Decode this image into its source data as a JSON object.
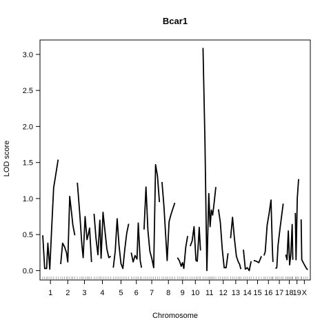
{
  "chart_data": {
    "type": "line",
    "title": "Bcar1",
    "xlabel": "Chromosome",
    "ylabel": "LOD score",
    "ylim": [
      -0.13,
      3.2
    ],
    "y_ticks": [
      "0.0",
      "0.5",
      "1.0",
      "1.5",
      "2.0",
      "2.5",
      "3.0"
    ],
    "grid": false,
    "line_color": "#000000",
    "chromosomes": [
      {
        "name": "1",
        "segments": [
          [
            [
              0.0,
              0.49
            ],
            [
              1.5,
              0.03
            ],
            [
              3.0,
              0.03
            ],
            [
              4.0,
              0.38
            ],
            [
              5.5,
              0.02
            ],
            [
              7.0,
              0.6
            ],
            [
              8.5,
              1.15
            ],
            [
              10.5,
              1.37
            ],
            [
              12.0,
              1.54
            ]
          ]
        ]
      },
      {
        "name": "2",
        "segments": [
          [
            [
              0.0,
              0.09
            ],
            [
              1.5,
              0.38
            ],
            [
              3.0,
              0.33
            ],
            [
              4.5,
              0.25
            ],
            [
              5.5,
              0.12
            ],
            [
              7.0,
              1.03
            ],
            [
              8.5,
              0.8
            ],
            [
              9.5,
              0.63
            ],
            [
              11.0,
              0.49
            ]
          ]
        ]
      },
      {
        "name": "3",
        "segments": [
          [
            [
              0.0,
              1.22
            ],
            [
              2.0,
              0.76
            ],
            [
              3.5,
              0.36
            ],
            [
              4.5,
              0.18
            ],
            [
              6.0,
              0.75
            ],
            [
              7.5,
              0.43
            ],
            [
              8.5,
              0.5
            ],
            [
              9.5,
              0.59
            ],
            [
              11.0,
              0.12
            ]
          ]
        ]
      },
      {
        "name": "4",
        "segments": [
          [
            [
              0.0,
              0.79
            ],
            [
              1.5,
              0.45
            ],
            [
              3.0,
              0.22
            ],
            [
              4.5,
              0.7
            ],
            [
              5.5,
              0.17
            ],
            [
              7.0,
              0.81
            ],
            [
              8.5,
              0.55
            ],
            [
              10.0,
              0.3
            ],
            [
              11.5,
              0.18
            ],
            [
              13.0,
              0.2
            ]
          ]
        ]
      },
      {
        "name": "5",
        "segments": [
          [
            [
              0.0,
              0.04
            ],
            [
              1.5,
              0.27
            ],
            [
              3.0,
              0.72
            ],
            [
              4.5,
              0.35
            ],
            [
              6.0,
              0.1
            ],
            [
              7.5,
              0.03
            ],
            [
              9.0,
              0.3
            ],
            [
              10.5,
              0.52
            ],
            [
              12.0,
              0.65
            ]
          ]
        ]
      },
      {
        "name": "6",
        "segments": [
          [
            [
              0.0,
              0.25
            ],
            [
              1.5,
              0.12
            ],
            [
              3.0,
              0.21
            ],
            [
              4.5,
              0.16
            ],
            [
              5.5,
              0.66
            ],
            [
              7.0,
              0.14
            ],
            [
              8.0,
              0.04
            ]
          ]
        ]
      },
      {
        "name": "7",
        "segments": [
          [
            [
              0.0,
              0.57
            ],
            [
              1.5,
              1.16
            ],
            [
              3.0,
              0.56
            ],
            [
              4.5,
              0.27
            ],
            [
              6.0,
              0.17
            ],
            [
              7.5,
              0.04
            ],
            [
              9.0,
              1.47
            ],
            [
              10.5,
              1.31
            ],
            [
              12.0,
              0.95
            ]
          ]
        ]
      },
      {
        "name": "8",
        "segments": [
          [
            [
              0.0,
              1.23
            ],
            [
              1.5,
              0.9
            ],
            [
              3.0,
              0.45
            ],
            [
              4.0,
              0.14
            ],
            [
              5.5,
              0.68
            ],
            [
              7.0,
              0.78
            ],
            [
              8.5,
              0.86
            ],
            [
              10.0,
              0.94
            ]
          ]
        ]
      },
      {
        "name": "9",
        "segments": [
          [
            [
              0.0,
              0.18
            ],
            [
              1.5,
              0.14
            ],
            [
              3.0,
              0.06
            ],
            [
              4.0,
              0.11
            ],
            [
              5.0,
              0.03
            ],
            [
              6.5,
              0.32
            ],
            [
              8.0,
              0.48
            ]
          ]
        ]
      },
      {
        "name": "10",
        "segments": [
          [
            [
              0.0,
              0.34
            ],
            [
              1.5,
              0.41
            ],
            [
              3.0,
              0.61
            ],
            [
              4.5,
              0.14
            ],
            [
              5.5,
              0.13
            ],
            [
              7.0,
              0.6
            ],
            [
              8.0,
              0.28
            ]
          ]
        ]
      },
      {
        "name": "11",
        "segments": [
          [
            [
              0.0,
              3.09
            ],
            [
              1.5,
              1.8
            ],
            [
              3.0,
              0.0
            ],
            [
              4.5,
              1.07
            ],
            [
              5.5,
              0.61
            ],
            [
              6.5,
              0.84
            ],
            [
              7.5,
              0.77
            ],
            [
              8.5,
              0.92
            ],
            [
              10.0,
              1.16
            ]
          ]
        ]
      },
      {
        "name": "12",
        "segments": [
          [
            [
              0.0,
              0.85
            ],
            [
              1.5,
              0.67
            ],
            [
              3.0,
              0.3
            ],
            [
              4.5,
              0.04
            ],
            [
              6.0,
              0.04
            ],
            [
              7.5,
              0.24
            ]
          ]
        ]
      },
      {
        "name": "13",
        "segments": [
          [
            [
              0.0,
              0.45
            ],
            [
              1.5,
              0.74
            ],
            [
              3.0,
              0.44
            ],
            [
              4.5,
              0.2
            ],
            [
              6.0,
              0.12
            ],
            [
              7.0,
              0.09
            ],
            [
              8.0,
              0.02
            ]
          ]
        ]
      },
      {
        "name": "14",
        "segments": [
          [
            [
              0.0,
              0.29
            ],
            [
              1.5,
              0.02
            ],
            [
              3.0,
              0.04
            ],
            [
              4.5,
              0.0
            ],
            [
              6.0,
              0.13
            ]
          ]
        ]
      },
      {
        "name": "15",
        "segments": [
          [
            [
              0.0,
              0.14
            ],
            [
              2.0,
              0.13
            ],
            [
              4.0,
              0.11
            ],
            [
              6.0,
              0.2
            ]
          ]
        ]
      },
      {
        "name": "16",
        "segments": [
          [
            [
              0.0,
              0.21
            ],
            [
              1.0,
              0.26
            ],
            [
              2.5,
              0.63
            ],
            [
              4.0,
              0.79
            ],
            [
              5.5,
              0.98
            ],
            [
              6.5,
              0.33
            ],
            [
              7.0,
              0.12
            ]
          ]
        ]
      },
      {
        "name": "17",
        "segments": [
          [
            [
              0.0,
              0.03
            ],
            [
              1.0,
              0.04
            ],
            [
              2.0,
              0.35
            ],
            [
              3.5,
              0.58
            ],
            [
              5.0,
              0.79
            ],
            [
              6.0,
              0.93
            ]
          ]
        ]
      },
      {
        "name": "18",
        "segments": [
          [
            [
              0.0,
              0.22
            ],
            [
              1.0,
              0.15
            ],
            [
              2.0,
              0.55
            ],
            [
              3.0,
              0.08
            ],
            [
              4.0,
              0.23
            ],
            [
              5.0,
              0.64
            ],
            [
              5.5,
              0.15
            ]
          ]
        ]
      },
      {
        "name": "19",
        "segments": [
          [
            [
              0.0,
              0.8
            ],
            [
              0.5,
              0.15
            ],
            [
              1.5,
              1.0
            ],
            [
              2.5,
              1.27
            ]
          ]
        ]
      },
      {
        "name": "X",
        "segments": [
          [
            [
              0.0,
              0.71
            ],
            [
              0.5,
              0.15
            ],
            [
              2.0,
              0.1
            ],
            [
              3.5,
              0.05
            ],
            [
              5.0,
              0.01
            ]
          ]
        ]
      }
    ]
  }
}
